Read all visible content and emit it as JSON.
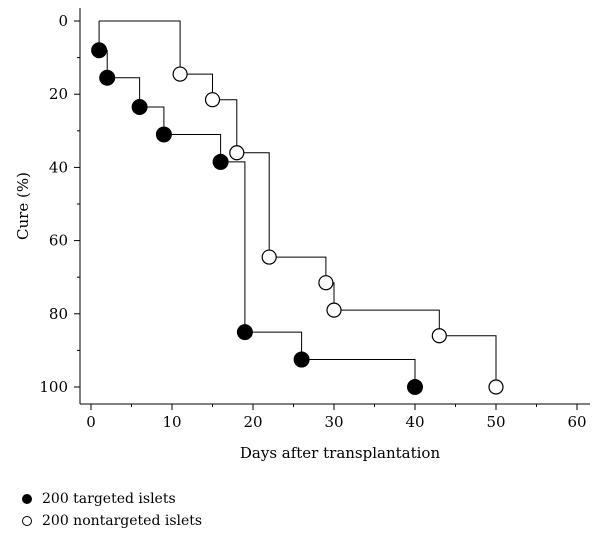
{
  "chart_data": {
    "type": "line",
    "step": true,
    "xlabel": "Days after transplantation",
    "ylabel": "Cure (%)",
    "xlim": [
      0,
      60
    ],
    "ylim": [
      0,
      105
    ],
    "y_inverted": true,
    "xticks": [
      0,
      10,
      20,
      30,
      40,
      50,
      60
    ],
    "yticks": [
      0,
      20,
      40,
      60,
      80,
      100
    ],
    "grid": false,
    "legend_position": "bottom-left",
    "series": [
      {
        "name": "200 targeted islets",
        "marker": "filled-circle",
        "color": "#000000",
        "start": [
          1,
          0
        ],
        "points": [
          [
            1,
            8
          ],
          [
            2,
            15.5
          ],
          [
            6,
            23.5
          ],
          [
            9,
            31
          ],
          [
            16,
            38.5
          ],
          [
            19,
            85
          ],
          [
            26,
            92.5
          ],
          [
            40,
            100
          ]
        ]
      },
      {
        "name": "200 nontargeted islets",
        "marker": "open-circle",
        "color": "#000000",
        "start": [
          1,
          0
        ],
        "points": [
          [
            11,
            14.5
          ],
          [
            15,
            21.5
          ],
          [
            18,
            36
          ],
          [
            22,
            64.5
          ],
          [
            29,
            71.5
          ],
          [
            30,
            79
          ],
          [
            43,
            86
          ],
          [
            50,
            100
          ]
        ]
      }
    ]
  }
}
